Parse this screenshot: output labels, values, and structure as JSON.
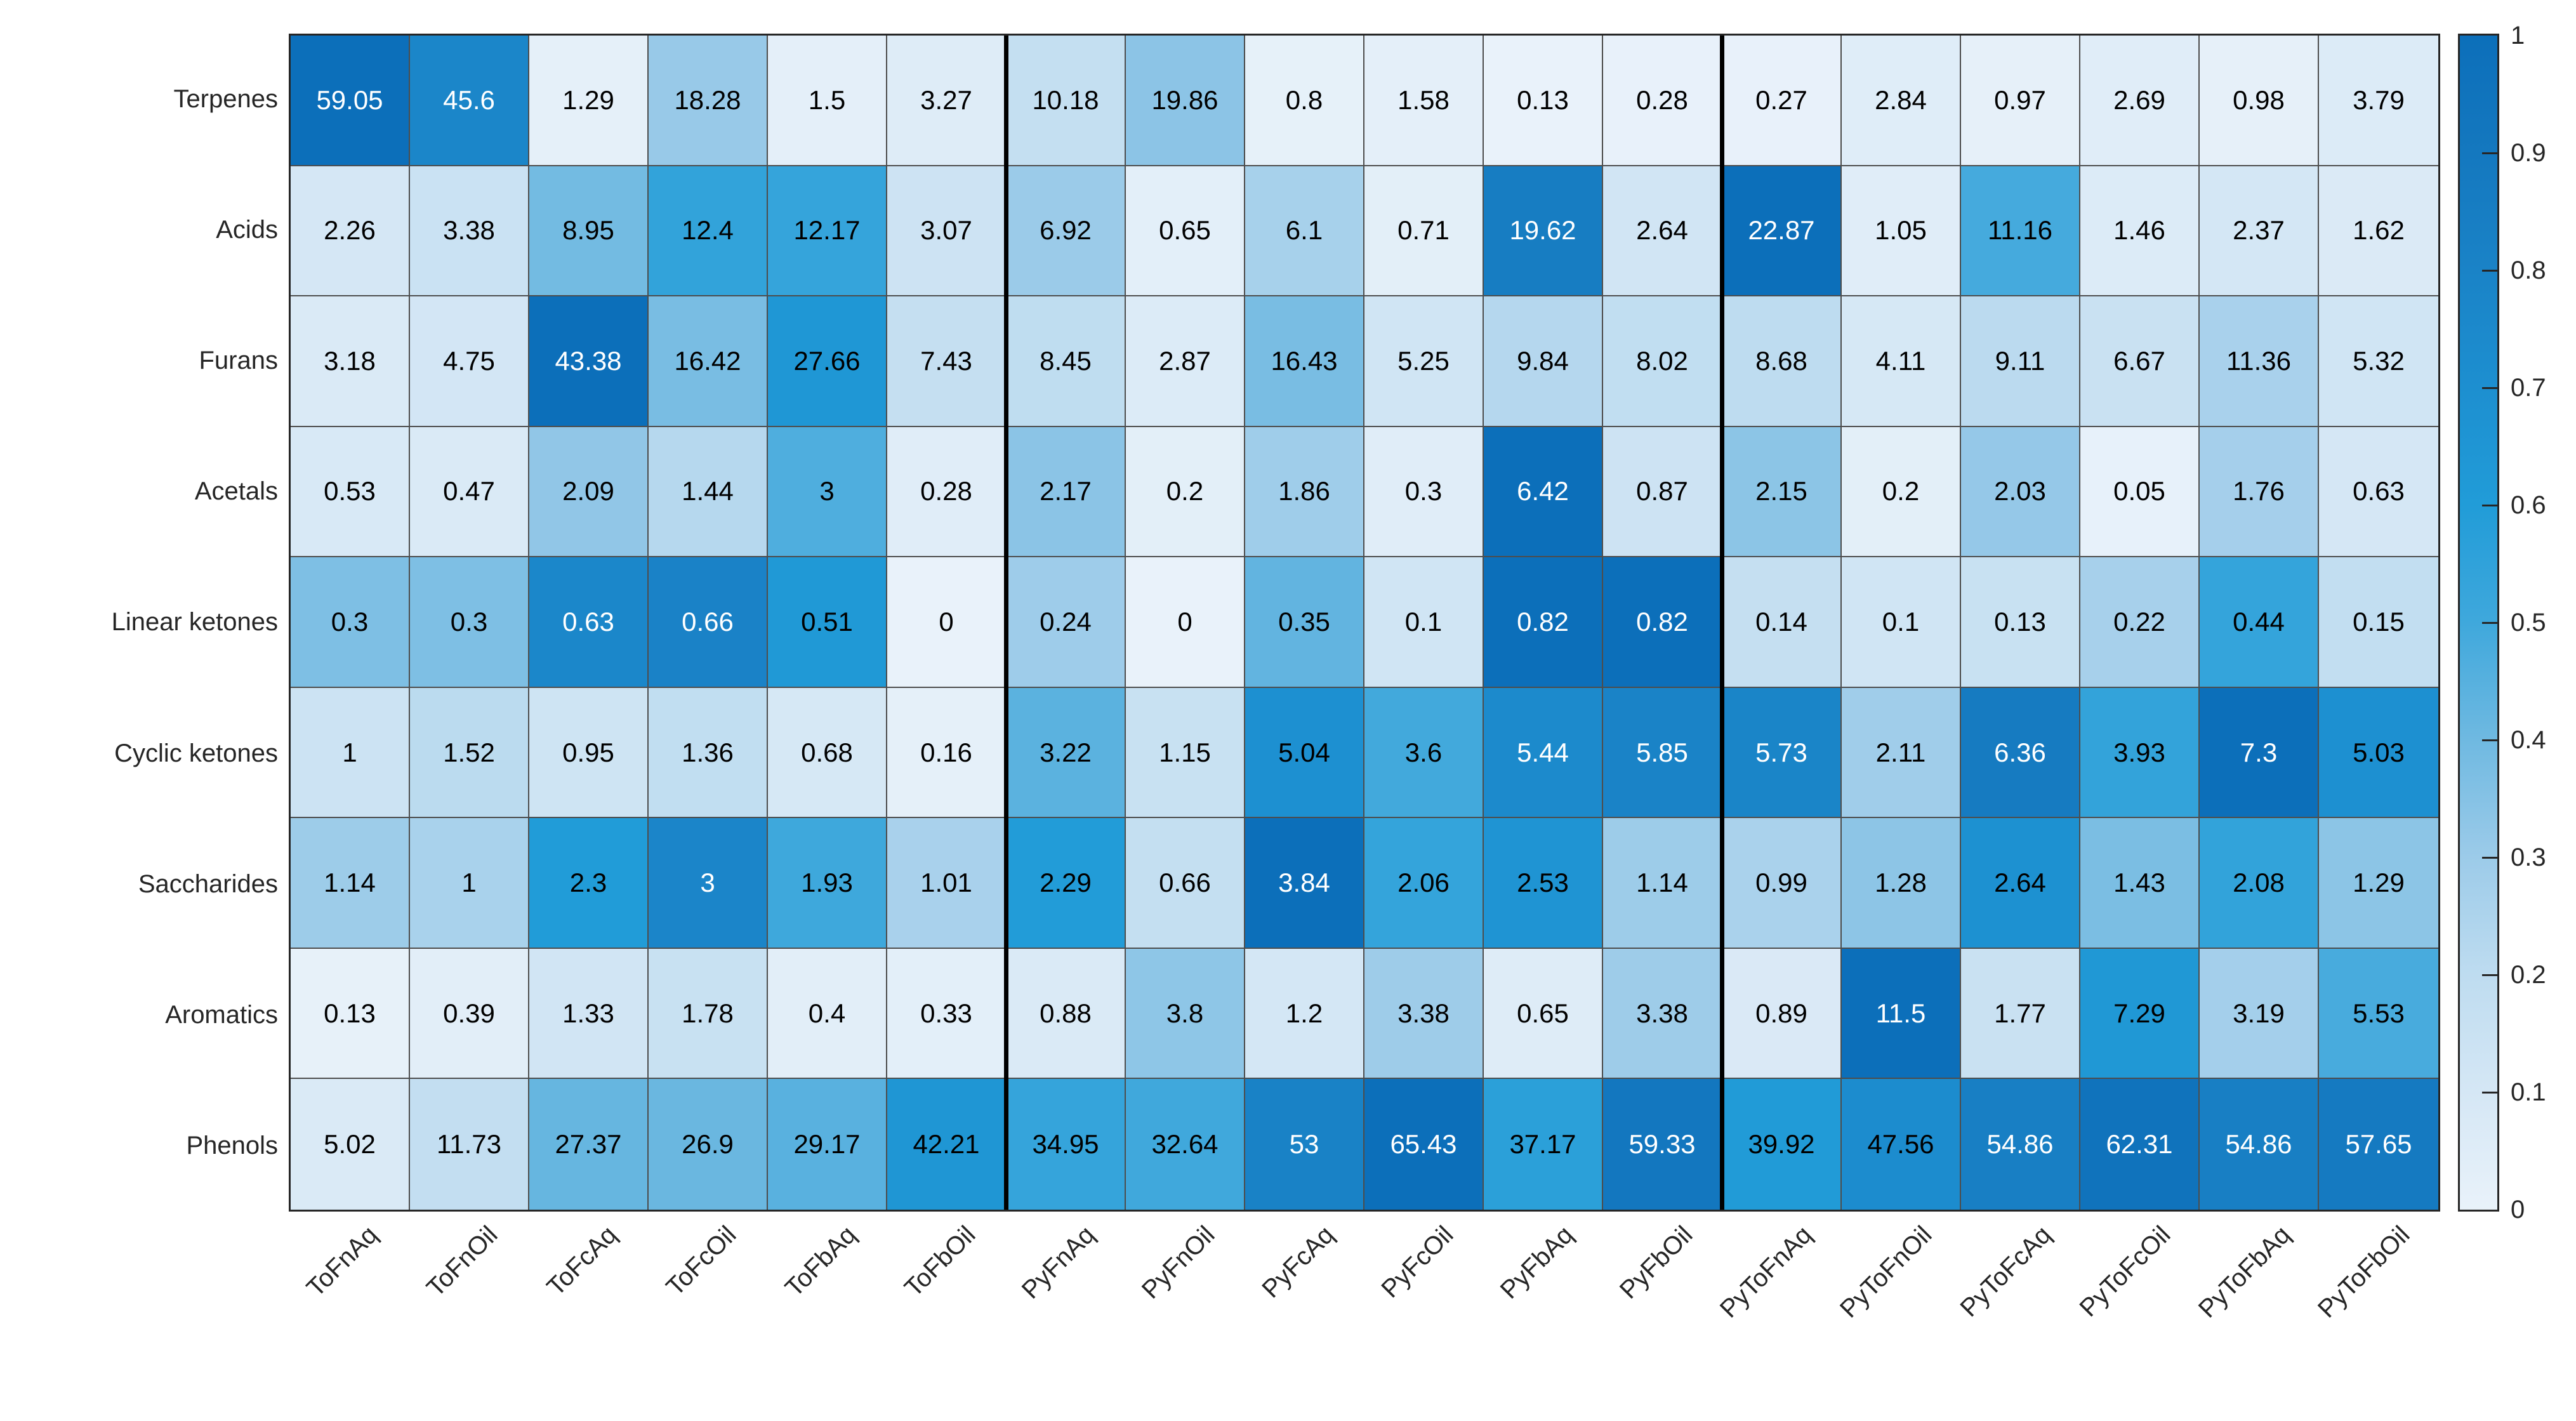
{
  "chart_data": {
    "type": "heatmap",
    "title": "",
    "rows": [
      "Terpenes",
      "Acids",
      "Furans",
      "Acetals",
      "Linear ketones",
      "Cyclic ketones",
      "Saccharides",
      "Aromatics",
      "Phenols"
    ],
    "columns": [
      "ToFnAq",
      "ToFnOil",
      "ToFcAq",
      "ToFcOil",
      "ToFbAq",
      "ToFbOil",
      "PyFnAq",
      "PyFnOil",
      "PyFcAq",
      "PyFcOil",
      "PyFbAq",
      "PyFbOil",
      "PyToFnAq",
      "PyToFnOil",
      "PyToFcAq",
      "PyToFcOil",
      "PyToFbAq",
      "PyToFbOil"
    ],
    "values": [
      [
        59.05,
        45.6,
        1.29,
        18.28,
        1.5,
        3.27,
        10.18,
        19.86,
        0.8,
        1.58,
        0.13,
        0.28,
        0.27,
        2.84,
        0.97,
        2.69,
        0.98,
        3.79
      ],
      [
        2.26,
        3.38,
        8.95,
        12.4,
        12.17,
        3.07,
        6.92,
        0.65,
        6.1,
        0.71,
        19.62,
        2.64,
        22.87,
        1.05,
        11.16,
        1.46,
        2.37,
        1.62
      ],
      [
        3.18,
        4.75,
        43.38,
        16.42,
        27.66,
        7.43,
        8.45,
        2.87,
        16.43,
        5.25,
        9.84,
        8.02,
        8.68,
        4.11,
        9.11,
        6.67,
        11.36,
        5.32
      ],
      [
        0.53,
        0.47,
        2.09,
        1.44,
        3,
        0.28,
        2.17,
        0.2,
        1.86,
        0.3,
        6.42,
        0.87,
        2.15,
        0.2,
        2.03,
        0.05,
        1.76,
        0.63
      ],
      [
        0.3,
        0.3,
        0.63,
        0.66,
        0.51,
        0,
        0.24,
        0,
        0.35,
        0.1,
        0.82,
        0.82,
        0.14,
        0.1,
        0.13,
        0.22,
        0.44,
        0.15
      ],
      [
        1,
        1.52,
        0.95,
        1.36,
        0.68,
        0.16,
        3.22,
        1.15,
        5.04,
        3.6,
        5.44,
        5.85,
        5.73,
        2.11,
        6.36,
        3.93,
        7.3,
        5.03
      ],
      [
        1.14,
        1,
        2.3,
        3,
        1.93,
        1.01,
        2.29,
        0.66,
        3.84,
        2.06,
        2.53,
        1.14,
        0.99,
        1.28,
        2.64,
        1.43,
        2.08,
        1.29
      ],
      [
        0.13,
        0.39,
        1.33,
        1.78,
        0.4,
        0.33,
        0.88,
        3.8,
        1.2,
        3.38,
        0.65,
        3.38,
        0.89,
        11.5,
        1.77,
        7.29,
        3.19,
        5.53
      ],
      [
        5.02,
        11.73,
        27.37,
        26.9,
        29.17,
        42.21,
        34.95,
        32.64,
        53,
        65.43,
        37.17,
        59.33,
        39.92,
        47.56,
        54.86,
        62.31,
        54.86,
        57.65
      ]
    ],
    "normalization": "row-max",
    "separators_after_columns": [
      6,
      12
    ],
    "colormap_stops": [
      "#E9F2FA",
      "#D5E7F5",
      "#BEDCF0",
      "#9CCBE9",
      "#6FB9E1",
      "#3FA8DC",
      "#219CD8",
      "#1D8FD0",
      "#1A83C7",
      "#1478BF",
      "#0C6FBA"
    ],
    "white_text_threshold": 0.735,
    "cell_text_dark": "#000000",
    "cell_text_light": "#ffffff",
    "grid_color": "#4d4d4d",
    "border_color": "#262626",
    "separator_color": "#000000",
    "colorbar": {
      "min": 0,
      "max": 1,
      "position": "right",
      "tick_labels": [
        "0",
        "0.1",
        "0.2",
        "0.3",
        "0.4",
        "0.5",
        "0.6",
        "0.7",
        "0.8",
        "0.9",
        "1"
      ]
    }
  }
}
